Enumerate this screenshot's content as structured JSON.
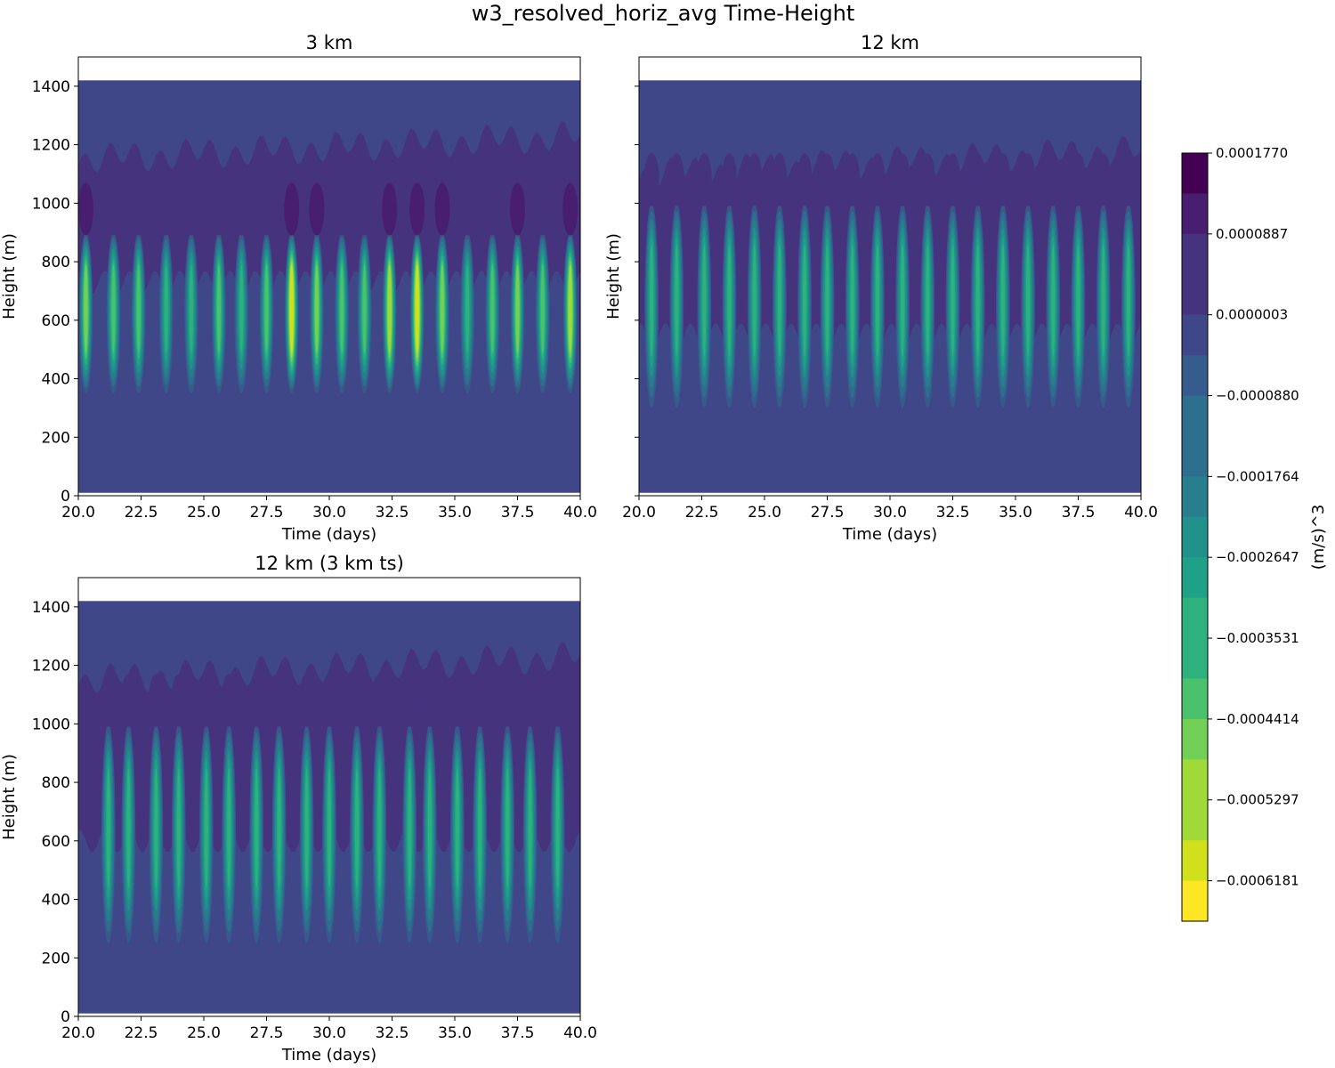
{
  "figure_title": "w3_resolved_horiz_avg Time-Height",
  "colors": {
    "background": "#ffffff",
    "level_colors": [
      "#fde725",
      "#d0e11c",
      "#a0da39",
      "#73d056",
      "#4ac16d",
      "#2db27d",
      "#1fa187",
      "#21918c",
      "#277f8e",
      "#2e6e8e",
      "#365c8d",
      "#3f4788",
      "#46337e",
      "#481f70",
      "#440154"
    ]
  },
  "chart_data": {
    "type": "heatmap",
    "panels": [
      {
        "title": "3 km",
        "xlabel": "Time (days)",
        "ylabel": "Height (m)",
        "xlim": [
          20,
          40
        ],
        "ylim": [
          0,
          1500
        ],
        "data_top": 1420,
        "data_bottom": 10,
        "xticks": [
          "20.0",
          "22.5",
          "25.0",
          "27.5",
          "30.0",
          "32.5",
          "35.0",
          "37.5",
          "40.0"
        ],
        "yticks": [
          "0",
          "200",
          "400",
          "600",
          "800",
          "1000",
          "1200",
          "1400"
        ],
        "show_ytick_labels": true,
        "pulse_days": [
          20.3,
          21.4,
          22.4,
          23.5,
          24.5,
          25.6,
          26.5,
          27.5,
          28.5,
          29.5,
          30.5,
          31.4,
          32.4,
          33.5,
          34.5,
          35.5,
          36.5,
          37.5,
          38.5,
          39.6
        ],
        "pulse_strength": [
          0.75,
          0.65,
          0.7,
          0.6,
          0.55,
          0.7,
          0.6,
          0.7,
          0.95,
          0.8,
          0.7,
          0.65,
          0.85,
          0.95,
          0.8,
          0.6,
          0.65,
          0.75,
          0.7,
          0.85
        ],
        "core_height_range": [
          350,
          900
        ],
        "upper_layer_range": [
          880,
          1150
        ]
      },
      {
        "title": "12 km",
        "xlabel": "Time (days)",
        "ylabel": "Height (m)",
        "xlim": [
          20,
          40
        ],
        "ylim": [
          0,
          1500
        ],
        "data_top": 1420,
        "data_bottom": 10,
        "xticks": [
          "20.0",
          "22.5",
          "25.0",
          "27.5",
          "30.0",
          "32.5",
          "35.0",
          "37.5",
          "40.0"
        ],
        "yticks": [
          "0",
          "200",
          "400",
          "600",
          "800",
          "1000",
          "1200",
          "1400"
        ],
        "show_ytick_labels": false,
        "pulse_days": [
          20.5,
          21.5,
          22.6,
          23.6,
          24.6,
          25.6,
          26.6,
          27.5,
          28.5,
          29.5,
          30.5,
          31.5,
          32.5,
          33.5,
          34.5,
          35.5,
          36.5,
          37.5,
          38.5,
          39.5
        ],
        "pulse_strength": [
          0.5,
          0.5,
          0.55,
          0.5,
          0.5,
          0.55,
          0.5,
          0.5,
          0.55,
          0.5,
          0.5,
          0.55,
          0.5,
          0.55,
          0.5,
          0.5,
          0.55,
          0.5,
          0.55,
          0.5
        ],
        "core_height_range": [
          300,
          1000
        ],
        "upper_layer_range": [
          700,
          1100
        ]
      },
      {
        "title": "12 km (3 km ts)",
        "xlabel": "Time (days)",
        "ylabel": "Height (m)",
        "xlim": [
          20,
          40
        ],
        "ylim": [
          0,
          1500
        ],
        "data_top": 1420,
        "data_bottom": 10,
        "xticks": [
          "20.0",
          "22.5",
          "25.0",
          "27.5",
          "30.0",
          "32.5",
          "35.0",
          "37.5",
          "40.0"
        ],
        "yticks": [
          "0",
          "200",
          "400",
          "600",
          "800",
          "1000",
          "1200",
          "1400"
        ],
        "show_ytick_labels": true,
        "pulse_days": [
          21.2,
          22.0,
          23.1,
          24.0,
          25.1,
          26.0,
          27.1,
          28.0,
          29.1,
          30.0,
          31.1,
          32.0,
          33.2,
          34.0,
          35.1,
          36.0,
          37.1,
          38.0,
          39.1
        ],
        "pulse_strength": [
          0.5,
          0.5,
          0.55,
          0.5,
          0.6,
          0.5,
          0.55,
          0.5,
          0.55,
          0.5,
          0.55,
          0.5,
          0.55,
          0.5,
          0.6,
          0.5,
          0.55,
          0.5,
          0.55
        ],
        "core_height_range": [
          250,
          1000
        ],
        "upper_layer_range": [
          750,
          1150
        ]
      }
    ],
    "colorbar": {
      "label": "(m/s)^3",
      "vmin": -0.0006622,
      "vmax": 0.000177,
      "n_levels": 19,
      "tick_labels": [
        "0.0001770",
        "0.0000887",
        "0.0000003",
        "−0.0000880",
        "−0.0001764",
        "−0.0002647",
        "−0.0003531",
        "−0.0004414",
        "−0.0005297",
        "−0.0006181"
      ]
    }
  }
}
